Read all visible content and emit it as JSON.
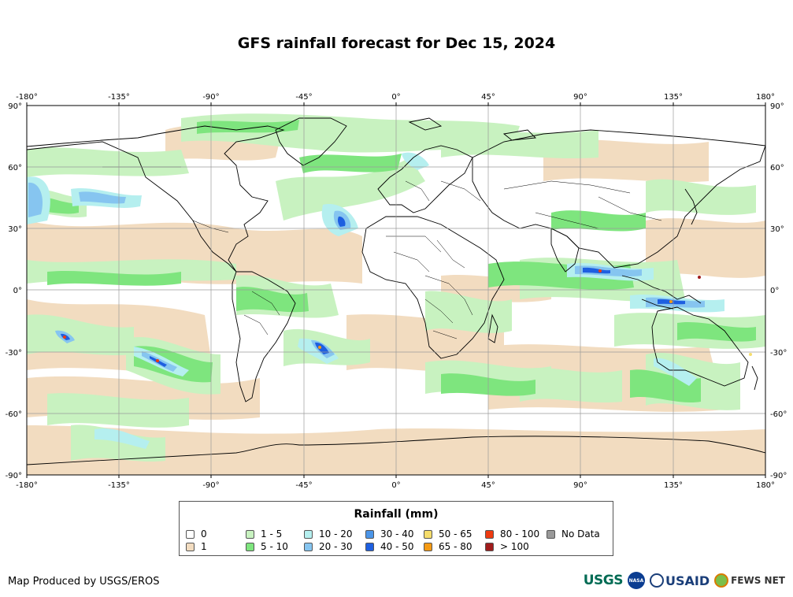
{
  "title": "GFS rainfall forecast for Dec 15, 2024",
  "axes": {
    "lon_ticks": [
      "-180°",
      "-135°",
      "-90°",
      "-45°",
      "0°",
      "45°",
      "90°",
      "135°",
      "180°"
    ],
    "lat_ticks_left": [
      "90°",
      "60°",
      "30°",
      "0°",
      "-30°",
      "-60°",
      "-90°"
    ],
    "lat_ticks_right": [
      "90°",
      "60°",
      "30°",
      "0°",
      "-30°",
      "-60°",
      "-90°"
    ],
    "lon_range": [
      -180,
      180
    ],
    "lat_range": [
      -90,
      90
    ],
    "grid": true
  },
  "legend": {
    "title": "Rainfall (mm)",
    "items": [
      {
        "label": "0",
        "color": "#ffffff"
      },
      {
        "label": "1",
        "color": "#f2dcc0"
      },
      {
        "label": "1 - 5",
        "color": "#c8f2c0"
      },
      {
        "label": "5 - 10",
        "color": "#7ee57e"
      },
      {
        "label": "10 - 20",
        "color": "#b5efef"
      },
      {
        "label": "20 - 30",
        "color": "#86c5f0"
      },
      {
        "label": "30 - 40",
        "color": "#4b95e8"
      },
      {
        "label": "40 - 50",
        "color": "#1e5fe0"
      },
      {
        "label": "50 - 65",
        "color": "#f5dd6c"
      },
      {
        "label": "65 - 80",
        "color": "#f59a14"
      },
      {
        "label": "80 - 100",
        "color": "#ee3a10"
      },
      {
        "label": "> 100",
        "color": "#a01c1c"
      },
      {
        "label": "No Data",
        "color": "#999999"
      }
    ]
  },
  "footer": {
    "credit": "Map Produced by USGS/EROS",
    "logos": {
      "usgs": "USGS",
      "nasa": "NASA",
      "usaid": "USAID",
      "fews": "FEWS NET"
    }
  }
}
